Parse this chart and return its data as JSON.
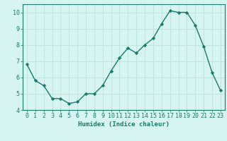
{
  "x": [
    0,
    1,
    2,
    3,
    4,
    5,
    6,
    7,
    8,
    9,
    10,
    11,
    12,
    13,
    14,
    15,
    16,
    17,
    18,
    19,
    20,
    21,
    22,
    23
  ],
  "y": [
    6.8,
    5.8,
    5.5,
    4.7,
    4.7,
    4.4,
    4.5,
    5.0,
    5.0,
    5.5,
    6.4,
    7.2,
    7.8,
    7.5,
    8.0,
    8.4,
    9.3,
    10.1,
    10.0,
    10.0,
    9.2,
    7.9,
    6.3,
    5.2
  ],
  "line_color": "#1a7a6a",
  "marker": "D",
  "marker_size": 2.2,
  "bg_color": "#d6f5f0",
  "grid_color": "#b8ddd8",
  "xlabel": "Humidex (Indice chaleur)",
  "ylim": [
    4,
    10.5
  ],
  "xlim": [
    -0.5,
    23.5
  ],
  "yticks": [
    4,
    5,
    6,
    7,
    8,
    9,
    10
  ],
  "xticks": [
    0,
    1,
    2,
    3,
    4,
    5,
    6,
    7,
    8,
    9,
    10,
    11,
    12,
    13,
    14,
    15,
    16,
    17,
    18,
    19,
    20,
    21,
    22,
    23
  ],
  "xlabel_fontsize": 6.5,
  "tick_fontsize": 6.0,
  "line_width": 1.0
}
